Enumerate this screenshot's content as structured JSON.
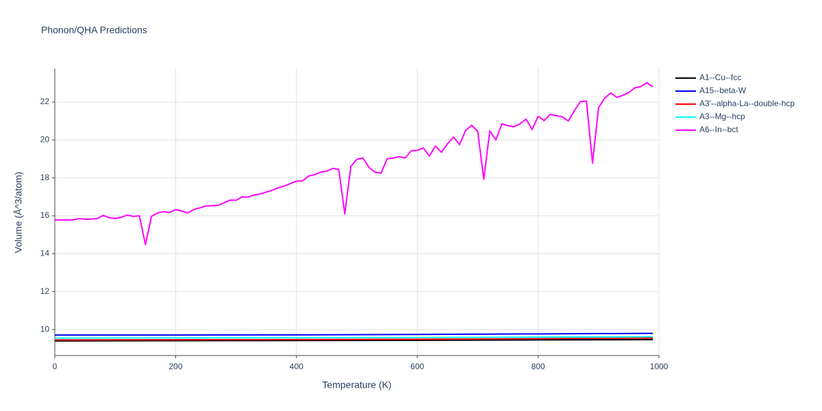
{
  "chart_data": {
    "type": "line",
    "title": "Phonon/QHA Predictions",
    "x_label": "Temperature (K)",
    "y_label": "Volume (Å^3/atom)",
    "xlim": [
      0,
      1000
    ],
    "xticks": [
      0,
      200,
      400,
      600,
      800,
      1000
    ],
    "ylim": [
      8.63,
      23.77
    ],
    "yticks": [
      10,
      12,
      14,
      16,
      18,
      20,
      22
    ],
    "grid": true,
    "legend": "right",
    "series": [
      {
        "name": "A1--Cu--fcc",
        "color": "#000000",
        "x": [
          0,
          200,
          400,
          600,
          800,
          990
        ],
        "values": [
          9.4,
          9.41,
          9.42,
          9.43,
          9.45,
          9.47
        ]
      },
      {
        "name": "A15--beta-W",
        "color": "#0000ff",
        "x": [
          0,
          200,
          400,
          600,
          800,
          990
        ],
        "values": [
          9.71,
          9.71,
          9.72,
          9.74,
          9.77,
          9.8
        ]
      },
      {
        "name": "A3'--alpha-La--double-hcp",
        "color": "#ff0000",
        "x": [
          0,
          200,
          400,
          600,
          800,
          990
        ],
        "values": [
          9.45,
          9.46,
          9.47,
          9.49,
          9.52,
          9.55
        ]
      },
      {
        "name": "A3--Mg--hcp",
        "color": "#00ffff",
        "x": [
          0,
          200,
          400,
          600,
          800,
          990
        ],
        "values": [
          9.55,
          9.56,
          9.57,
          9.58,
          9.6,
          9.62
        ]
      },
      {
        "name": "A6--In--bct",
        "color": "#ff00ff",
        "x": [
          0,
          10,
          20,
          30,
          40,
          50,
          60,
          70,
          80,
          90,
          100,
          110,
          120,
          130,
          140,
          150,
          160,
          170,
          180,
          190,
          200,
          210,
          220,
          230,
          240,
          250,
          260,
          270,
          280,
          290,
          300,
          310,
          320,
          330,
          340,
          350,
          360,
          370,
          380,
          390,
          400,
          410,
          420,
          430,
          440,
          450,
          460,
          470,
          480,
          490,
          500,
          510,
          520,
          530,
          540,
          550,
          560,
          570,
          580,
          590,
          600,
          610,
          620,
          630,
          640,
          650,
          660,
          670,
          680,
          690,
          700,
          710,
          720,
          730,
          740,
          750,
          760,
          770,
          780,
          790,
          800,
          810,
          820,
          830,
          840,
          850,
          860,
          870,
          880,
          890,
          900,
          910,
          920,
          930,
          940,
          950,
          960,
          970,
          980,
          990
        ],
        "values": [
          15.78,
          15.78,
          15.78,
          15.78,
          15.85,
          15.82,
          15.83,
          15.85,
          16.02,
          15.9,
          15.86,
          15.92,
          16.04,
          15.97,
          16.0,
          14.48,
          15.97,
          16.15,
          16.22,
          16.17,
          16.33,
          16.25,
          16.15,
          16.33,
          16.42,
          16.52,
          16.53,
          16.55,
          16.68,
          16.83,
          16.82,
          17.0,
          16.99,
          17.1,
          17.15,
          17.25,
          17.35,
          17.48,
          17.57,
          17.7,
          17.83,
          17.84,
          18.1,
          18.17,
          18.3,
          18.35,
          18.5,
          18.45,
          16.1,
          18.6,
          18.98,
          19.05,
          18.55,
          18.3,
          18.25,
          19.0,
          19.05,
          19.12,
          19.05,
          19.43,
          19.45,
          19.58,
          19.15,
          19.68,
          19.35,
          19.8,
          20.15,
          19.75,
          20.5,
          20.78,
          20.45,
          17.93,
          20.48,
          20.0,
          20.85,
          20.75,
          20.7,
          20.85,
          21.1,
          20.55,
          21.25,
          21.02,
          21.35,
          21.28,
          21.22,
          21.0,
          21.55,
          22.02,
          22.05,
          18.78,
          21.7,
          22.2,
          22.48,
          22.25,
          22.35,
          22.5,
          22.75,
          22.82,
          23.02,
          22.8
        ]
      }
    ]
  }
}
